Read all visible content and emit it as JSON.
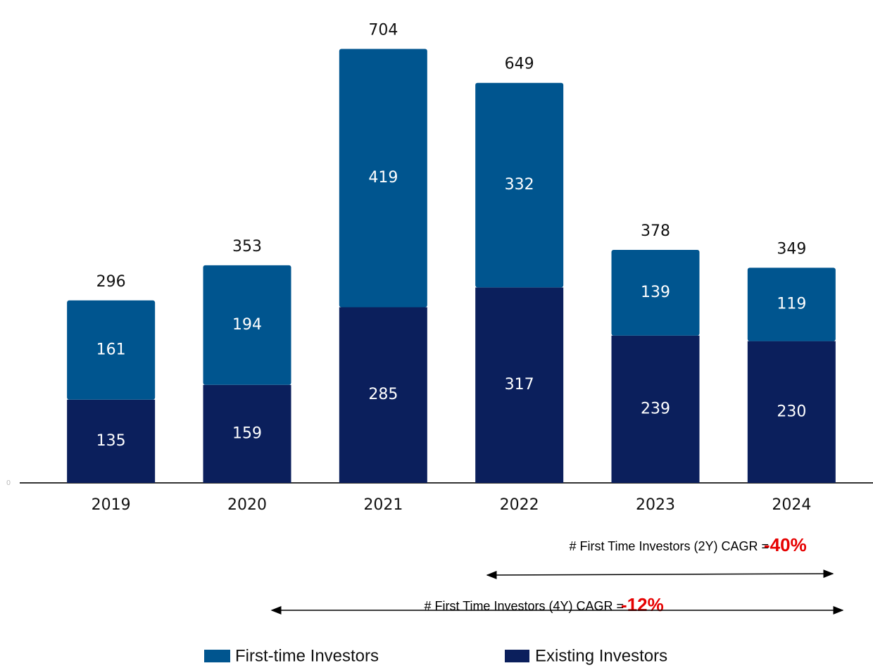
{
  "chart_data": {
    "type": "stacked_bar",
    "categories": [
      "2019",
      "2020",
      "2021",
      "2022",
      "2023",
      "2024"
    ],
    "series": [
      {
        "name": "Existing Investors",
        "color": "#0b1f5c",
        "values": [
          135,
          159,
          285,
          317,
          239,
          230
        ]
      },
      {
        "name": "First-time Investors",
        "color": "#00558f",
        "values": [
          161,
          194,
          419,
          332,
          139,
          119
        ]
      }
    ],
    "totals": [
      296,
      353,
      704,
      649,
      378,
      349
    ],
    "ylim": [
      0,
      780
    ],
    "yticks": [
      0
    ],
    "annotations": [
      {
        "text": "# First Time Investors (2Y) CAGR = ",
        "value_label": "-40%"
      },
      {
        "text": "# First Time Investors (4Y) CAGR = ",
        "value_label": "-12%"
      }
    ]
  }
}
